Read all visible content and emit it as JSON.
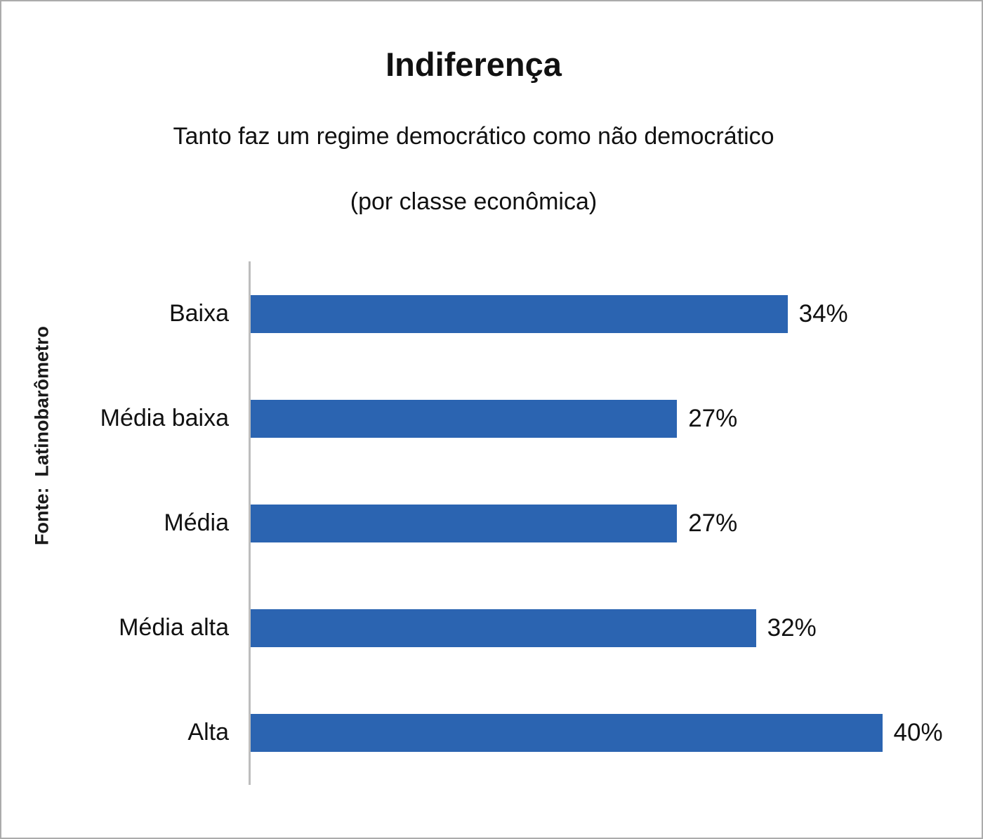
{
  "chart_data": {
    "type": "bar",
    "orientation": "horizontal",
    "title": "Indiferença",
    "subtitle": "Tanto faz um regime democrático como não democrático",
    "subtitle2": "(por classe econômica)",
    "source": "Fonte:  Latinobarômetro",
    "categories": [
      "Baixa",
      "Média baixa",
      "Média",
      "Média alta",
      "Alta"
    ],
    "values": [
      34,
      27,
      27,
      32,
      40
    ],
    "value_labels": [
      "34%",
      "27%",
      "27%",
      "32%",
      "40%"
    ],
    "xlim": [
      0,
      45
    ],
    "bar_color": "#2b64b1",
    "axis_color": "#bdbdbd",
    "text_color": "#111111",
    "grid": false,
    "legend": false
  }
}
